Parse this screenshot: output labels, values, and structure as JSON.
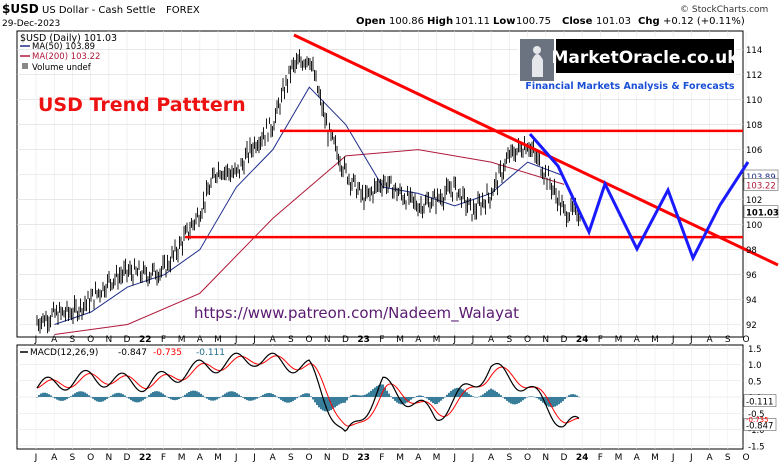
{
  "header": {
    "symbol": "$USD",
    "name": "US Dollar - Cash Settle",
    "exchange": "FOREX",
    "date": "29-Dec-2023",
    "open_label": "Open",
    "open": "100.86",
    "high_label": "High",
    "high": "101.11",
    "low_label": "Low",
    "low": "100.75",
    "close_label": "Close",
    "close": "101.03",
    "chg_label": "Chg",
    "chg": "+0.12 (+0.11%)",
    "watermark": "© StockCharts.com"
  },
  "legend": {
    "price": "$USD (Daily) 101.03",
    "ma50": "MA(50) 103.89",
    "ma200": "MA(200) 103.22",
    "volume": "Volume undef"
  },
  "annotations": {
    "title": "USD Trend Patttern",
    "url": "https://www.patreon.com/Nadeem_Walayat"
  },
  "logo": {
    "name": "MarketOracle.co.uk",
    "tagline": "Financial Markets Analysis & Forecasts"
  },
  "price_axis": {
    "ticks": [
      "114",
      "112",
      "110",
      "108",
      "106",
      "104",
      "102",
      "100",
      "98",
      "96",
      "94",
      "92"
    ],
    "ma50_tag": "103.89",
    "ma200_tag": "103.22",
    "close_tag": "101.03"
  },
  "macd": {
    "label": "MACD(12,26,9)",
    "macd": "-0.847",
    "signal": "-0.735",
    "hist": "-0.111",
    "ticks": [
      "1.5",
      "1.0",
      "0.5",
      "0.0",
      "-0.5",
      "-1.0",
      "-1.5"
    ],
    "hist_tag": "-0.111",
    "tag2": "-0.735",
    "macd_tag": "-0.847"
  },
  "time_axis": [
    "J",
    "A",
    "S",
    "O",
    "N",
    "D",
    "22",
    "F",
    "M",
    "A",
    "M",
    "J",
    "J",
    "A",
    "S",
    "O",
    "N",
    "D",
    "23",
    "F",
    "M",
    "A",
    "M",
    "J",
    "J",
    "A",
    "S",
    "O",
    "N",
    "D",
    "24",
    "F",
    "M",
    "A",
    "M",
    "J",
    "J",
    "A",
    "S",
    "O"
  ],
  "colors": {
    "price": "#000000",
    "ma50": "#1f2e8c",
    "ma200": "#b0193a",
    "trendlines": "#ff0000",
    "forecast": "#1a1aff",
    "macd": "#000000",
    "signal": "#ff0000",
    "histogram": "#236f8f",
    "title_text": "#ee1111",
    "url_text": "#5a1a70"
  },
  "chart_data": {
    "type": "line",
    "title": "$USD (Daily) 101.03",
    "date_range": [
      "2021-07",
      "2023-12-29"
    ],
    "price_ylim": [
      91,
      115.5
    ],
    "grid": true,
    "legend_placement": "top-left",
    "series": [
      {
        "name": "$USD (Daily) 101.03",
        "x": [
          "2021-07",
          "2021-08",
          "2021-09",
          "2021-10",
          "2021-11",
          "2021-12",
          "2022-01",
          "2022-02",
          "2022-03",
          "2022-04",
          "2022-05",
          "2022-06",
          "2022-07",
          "2022-08",
          "2022-09",
          "2022-10",
          "2022-11",
          "2022-12",
          "2023-01",
          "2023-02",
          "2023-03",
          "2023-04",
          "2023-05",
          "2023-06",
          "2023-07",
          "2023-08",
          "2023-09",
          "2023-10",
          "2023-11",
          "2023-12"
        ],
        "values": [
          92.2,
          92.8,
          93.0,
          94.0,
          95.5,
          96.2,
          96.0,
          96.4,
          98.5,
          101.0,
          104.5,
          104.0,
          106.5,
          108.0,
          112.5,
          113.5,
          107.5,
          104.2,
          102.0,
          103.5,
          102.5,
          101.5,
          102.0,
          103.0,
          101.0,
          102.5,
          105.5,
          106.5,
          104.0,
          101.0
        ]
      },
      {
        "name": "MA(50) 103.89",
        "x": [
          "2021-08",
          "2021-10",
          "2021-12",
          "2022-02",
          "2022-04",
          "2022-06",
          "2022-08",
          "2022-10",
          "2022-12",
          "2023-02",
          "2023-04",
          "2023-06",
          "2023-08",
          "2023-10",
          "2023-12"
        ],
        "values": [
          92.0,
          93.0,
          95.0,
          96.0,
          98.0,
          103.0,
          106.0,
          111.0,
          108.0,
          103.0,
          102.5,
          101.5,
          102.5,
          105.0,
          103.89
        ]
      },
      {
        "name": "MA(200) 103.22",
        "x": [
          "2021-08",
          "2021-12",
          "2022-04",
          "2022-08",
          "2022-12",
          "2023-04",
          "2023-08",
          "2023-12"
        ],
        "values": [
          91.2,
          92.0,
          94.5,
          100.5,
          105.5,
          106.0,
          105.0,
          103.22
        ]
      }
    ],
    "macd_ylim": [
      -1.6,
      1.6
    ],
    "macd_series": [
      {
        "name": "MACD(12,26,9)",
        "x": [
          "2021-07",
          "2021-10",
          "2022-01",
          "2022-04",
          "2022-07",
          "2022-10",
          "2022-12",
          "2023-02",
          "2023-05",
          "2023-08",
          "2023-10",
          "2023-12"
        ],
        "values": [
          0.3,
          0.6,
          0.4,
          0.9,
          1.2,
          0.9,
          -1.3,
          0.4,
          -0.6,
          0.9,
          0.3,
          -0.847
        ]
      }
    ]
  }
}
